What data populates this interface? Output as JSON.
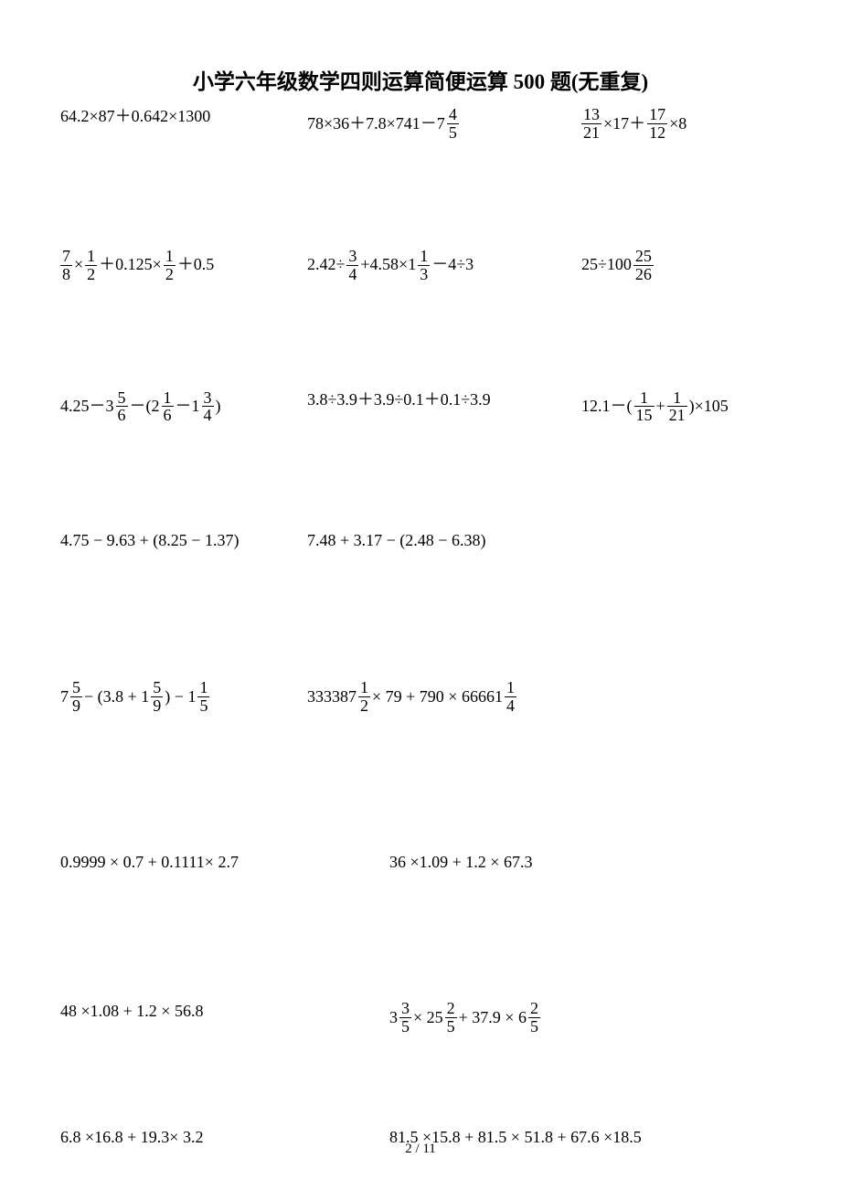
{
  "title": "小学六年级数学四则运算简便运算 500 题(无重复)",
  "footer": "2 / 11",
  "colors": {
    "text": "#000000",
    "bg": "#ffffff"
  },
  "rows": [
    {
      "cells": [
        {
          "tokens": [
            {
              "t": "txt",
              "v": "64.2×87＋0.642×1300"
            }
          ]
        },
        {
          "tokens": [
            {
              "t": "txt",
              "v": "78×36＋7.8×741－7"
            },
            {
              "t": "frac",
              "n": "4",
              "d": "5"
            }
          ]
        },
        {
          "tokens": [
            {
              "t": "frac",
              "n": "13",
              "d": "21"
            },
            {
              "t": "txt",
              "v": "×17＋"
            },
            {
              "t": "frac",
              "n": "17",
              "d": "12"
            },
            {
              "t": "txt",
              "v": "×8"
            }
          ]
        }
      ]
    },
    {
      "cells": [
        {
          "tokens": [
            {
              "t": "frac",
              "n": "7",
              "d": "8"
            },
            {
              "t": "txt",
              "v": "×"
            },
            {
              "t": "frac",
              "n": "1",
              "d": "2"
            },
            {
              "t": "txt",
              "v": "＋0.125×"
            },
            {
              "t": "frac",
              "n": "1",
              "d": "2"
            },
            {
              "t": "txt",
              "v": "＋0.5"
            }
          ]
        },
        {
          "tokens": [
            {
              "t": "txt",
              "v": "2.42÷"
            },
            {
              "t": "frac",
              "n": "3",
              "d": "4"
            },
            {
              "t": "txt",
              "v": "+4.58×1"
            },
            {
              "t": "frac",
              "n": "1",
              "d": "3"
            },
            {
              "t": "txt",
              "v": "－4÷3"
            }
          ]
        },
        {
          "tokens": [
            {
              "t": "txt",
              "v": "25÷100"
            },
            {
              "t": "frac",
              "n": "25",
              "d": "26"
            }
          ]
        }
      ]
    },
    {
      "cells": [
        {
          "tokens": [
            {
              "t": "txt",
              "v": "4.25－3"
            },
            {
              "t": "frac",
              "n": "5",
              "d": "6"
            },
            {
              "t": "txt",
              "v": "－(2"
            },
            {
              "t": "frac",
              "n": "1",
              "d": "6"
            },
            {
              "t": "txt",
              "v": "－1"
            },
            {
              "t": "frac",
              "n": "3",
              "d": "4"
            },
            {
              "t": "txt",
              "v": ")"
            }
          ]
        },
        {
          "tokens": [
            {
              "t": "txt",
              "v": "3.8÷3.9＋3.9÷0.1＋0.1÷3.9"
            }
          ]
        },
        {
          "tokens": [
            {
              "t": "txt",
              "v": "12.1－("
            },
            {
              "t": "frac",
              "n": "1",
              "d": "15"
            },
            {
              "t": "txt",
              "v": "+"
            },
            {
              "t": "frac",
              "n": "1",
              "d": "21"
            },
            {
              "t": "txt",
              "v": ")×105"
            }
          ]
        }
      ]
    },
    {
      "cells": [
        {
          "tokens": [
            {
              "t": "txt",
              "v": "4.75 − 9.63 + (8.25 − 1.37)"
            }
          ]
        },
        {
          "tokens": [
            {
              "t": "txt",
              "v": "7.48 + 3.17 − (2.48 − 6.38)"
            }
          ]
        }
      ]
    },
    {
      "cells": [
        {
          "tokens": [
            {
              "t": "txt",
              "v": "7"
            },
            {
              "t": "frac",
              "n": "5",
              "d": "9"
            },
            {
              "t": "txt",
              "v": " − (3.8 + 1"
            },
            {
              "t": "frac",
              "n": "5",
              "d": "9"
            },
            {
              "t": "txt",
              "v": ") − 1"
            },
            {
              "t": "frac",
              "n": "1",
              "d": "5"
            }
          ]
        },
        {
          "tokens": [
            {
              "t": "txt",
              "v": "333387"
            },
            {
              "t": "frac",
              "n": "1",
              "d": "2"
            },
            {
              "t": "txt",
              "v": "× 79 + 790 × 66661"
            },
            {
              "t": "frac",
              "n": "1",
              "d": "4"
            }
          ]
        }
      ]
    },
    {
      "cells": [
        {
          "tokens": [
            {
              "t": "txt",
              "v": "0.9999 × 0.7 + 0.1111× 2.7"
            }
          ]
        },
        {
          "tokens": [
            {
              "t": "txt",
              "v": "36 ×1.09 + 1.2 × 67.3"
            }
          ],
          "pad": true
        }
      ]
    },
    {
      "cells": [
        {
          "tokens": [
            {
              "t": "txt",
              "v": "48 ×1.08 + 1.2 × 56.8"
            }
          ]
        },
        {
          "tokens": [
            {
              "t": "txt",
              "v": "3"
            },
            {
              "t": "frac",
              "n": "3",
              "d": "5"
            },
            {
              "t": "txt",
              "v": "× 25"
            },
            {
              "t": "frac",
              "n": "2",
              "d": "5"
            },
            {
              "t": "txt",
              "v": " + 37.9 × 6"
            },
            {
              "t": "frac",
              "n": "2",
              "d": "5"
            }
          ],
          "pad": true
        }
      ]
    },
    {
      "cells": [
        {
          "tokens": [
            {
              "t": "txt",
              "v": "6.8 ×16.8 + 19.3× 3.2"
            }
          ]
        },
        {
          "tokens": [
            {
              "t": "txt",
              "v": "81.5 ×15.8 + 81.5 × 51.8 + 67.6 ×18.5"
            }
          ],
          "pad": true
        }
      ]
    }
  ]
}
